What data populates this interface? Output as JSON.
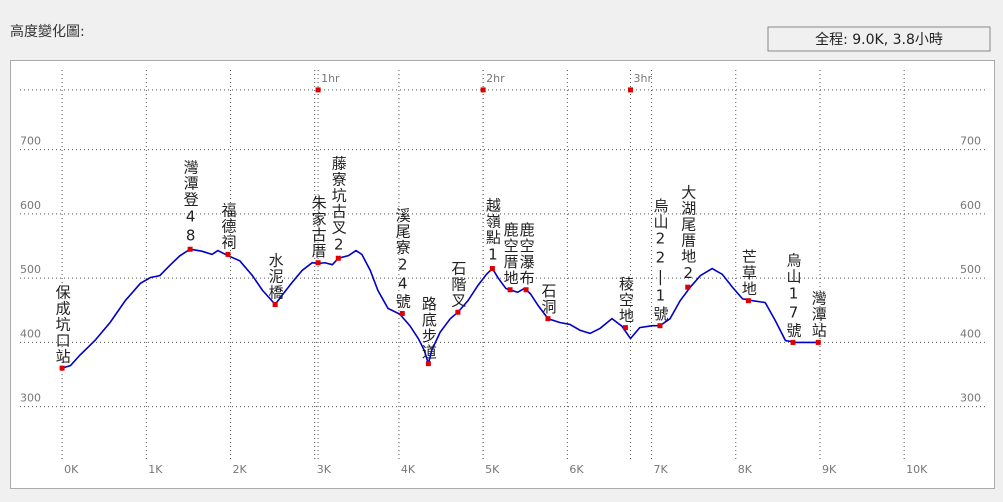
{
  "header": {
    "title": "高度變化圖:",
    "summary": "全程: 9.0K, 3.8小時"
  },
  "chart_data": {
    "type": "line",
    "color": "#0000c8",
    "marker_color": "#e00000",
    "grid": true,
    "xlim": [
      -0.5,
      10.96
    ],
    "ylim": [
      217,
      824
    ],
    "xticks": [
      {
        "value": 0,
        "label": "0K"
      },
      {
        "value": 1,
        "label": "1K"
      },
      {
        "value": 2,
        "label": "2K"
      },
      {
        "value": 3,
        "label": "3K"
      },
      {
        "value": 4,
        "label": "4K"
      },
      {
        "value": 5,
        "label": "5K"
      },
      {
        "value": 6,
        "label": "6K"
      },
      {
        "value": 7,
        "label": "7K"
      },
      {
        "value": 8,
        "label": "8K"
      },
      {
        "value": 9,
        "label": "9K"
      },
      {
        "value": 10,
        "label": "10K"
      }
    ],
    "yticks": [
      300,
      400,
      500,
      600,
      700
    ],
    "time_marks": [
      {
        "label": "1hr",
        "x": 3.04
      },
      {
        "label": "2hr",
        "x": 5.0
      },
      {
        "label": "3hr",
        "x": 6.75
      }
    ],
    "time_line_y": 793,
    "x": [
      0,
      0.1,
      0.21,
      0.39,
      0.57,
      0.75,
      0.93,
      1.05,
      1.16,
      1.28,
      1.4,
      1.52,
      1.66,
      1.78,
      1.85,
      1.97,
      2.11,
      2.26,
      2.38,
      2.47,
      2.53,
      2.61,
      2.73,
      2.85,
      2.97,
      3.04,
      3.12,
      3.21,
      3.28,
      3.4,
      3.49,
      3.56,
      3.66,
      3.75,
      3.87,
      4.01,
      4.13,
      4.23,
      4.3,
      4.35,
      4.39,
      4.49,
      4.61,
      4.7,
      4.82,
      4.94,
      5.04,
      5.11,
      5.18,
      5.27,
      5.34,
      5.41,
      5.49,
      5.56,
      5.65,
      5.77,
      5.91,
      6.03,
      6.15,
      6.27,
      6.39,
      6.53,
      6.65,
      6.75,
      6.86,
      7.01,
      7.1,
      7.22,
      7.34,
      7.46,
      7.58,
      7.72,
      7.84,
      7.96,
      8.08,
      8.2,
      8.35,
      8.47,
      8.59,
      8.71,
      8.87,
      8.98
    ],
    "values": [
      360,
      364,
      380,
      403,
      431,
      465,
      492,
      501,
      504,
      520,
      535,
      545,
      542,
      537,
      543,
      535,
      527,
      504,
      481,
      468,
      459,
      473,
      493,
      512,
      524,
      523,
      524,
      521,
      531,
      535,
      543,
      537,
      512,
      481,
      453,
      444,
      426,
      406,
      388,
      367,
      388,
      416,
      437,
      447,
      465,
      489,
      506,
      515,
      500,
      484,
      481,
      478,
      484,
      476,
      458,
      437,
      431,
      428,
      419,
      414,
      422,
      437,
      425,
      406,
      423,
      426,
      426,
      437,
      465,
      486,
      504,
      515,
      506,
      486,
      468,
      465,
      462,
      434,
      403,
      400,
      400,
      400
    ],
    "waypoints": [
      {
        "label": "保成坑口站",
        "x": 0,
        "y": 360
      },
      {
        "label": "灣潭登48",
        "x": 1.52,
        "y": 545
      },
      {
        "label": "福德祠",
        "x": 1.97,
        "y": 537
      },
      {
        "label": "水泥橋",
        "x": 2.53,
        "y": 459
      },
      {
        "label": "朱家古厝",
        "x": 3.04,
        "y": 524
      },
      {
        "label": "藤寮坑古叉2",
        "x": 3.28,
        "y": 531
      },
      {
        "label": "溪尾寮24號",
        "x": 4.04,
        "y": 445
      },
      {
        "label": "路底步道",
        "x": 4.35,
        "y": 367
      },
      {
        "label": "石階叉",
        "x": 4.7,
        "y": 447
      },
      {
        "label": "越嶺點1",
        "x": 5.11,
        "y": 515
      },
      {
        "label": "鹿空厝地",
        "x": 5.32,
        "y": 482
      },
      {
        "label": "鹿空瀑布",
        "x": 5.51,
        "y": 482
      },
      {
        "label": "石洞",
        "x": 5.77,
        "y": 437
      },
      {
        "label": "稜空地",
        "x": 6.69,
        "y": 423
      },
      {
        "label": "烏山22|1號",
        "x": 7.1,
        "y": 426
      },
      {
        "label": "大湖尾厝地2",
        "x": 7.43,
        "y": 486
      },
      {
        "label": "芒草地",
        "x": 8.15,
        "y": 465
      },
      {
        "label": "烏山17號",
        "x": 8.68,
        "y": 400
      },
      {
        "label": "灣潭站",
        "x": 8.98,
        "y": 400
      }
    ]
  }
}
